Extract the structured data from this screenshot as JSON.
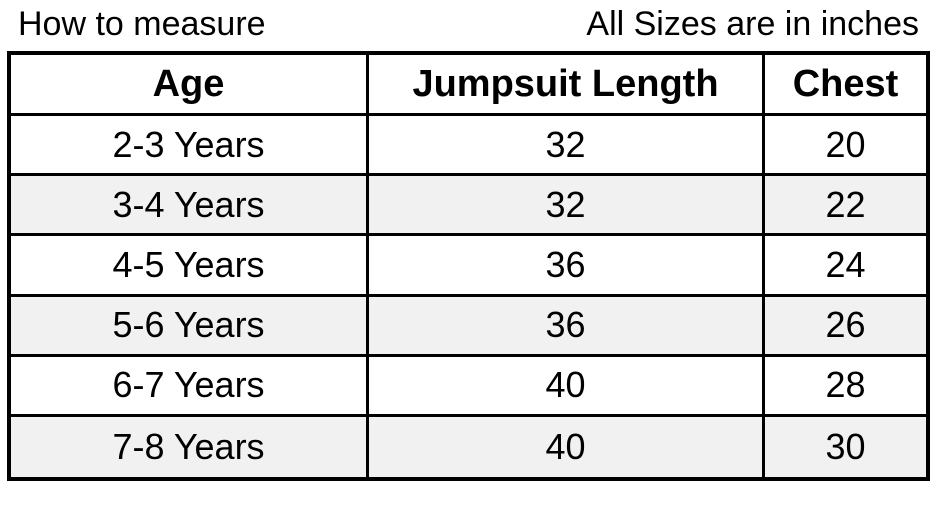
{
  "captions": {
    "left": "How to measure",
    "right": "All Sizes are in inches"
  },
  "table": {
    "headers": [
      "Age",
      "Jumpsuit Length",
      "Chest"
    ],
    "rows": [
      [
        "2-3 Years",
        "32",
        "20"
      ],
      [
        "3-4 Years",
        "32",
        "22"
      ],
      [
        "4-5 Years",
        "36",
        "24"
      ],
      [
        "5-6 Years",
        "36",
        "26"
      ],
      [
        "6-7 Years",
        "40",
        "28"
      ],
      [
        "7-8 Years",
        "40",
        "30"
      ]
    ],
    "alt_row_color": "#f1f1f1",
    "border_color": "#000000"
  }
}
